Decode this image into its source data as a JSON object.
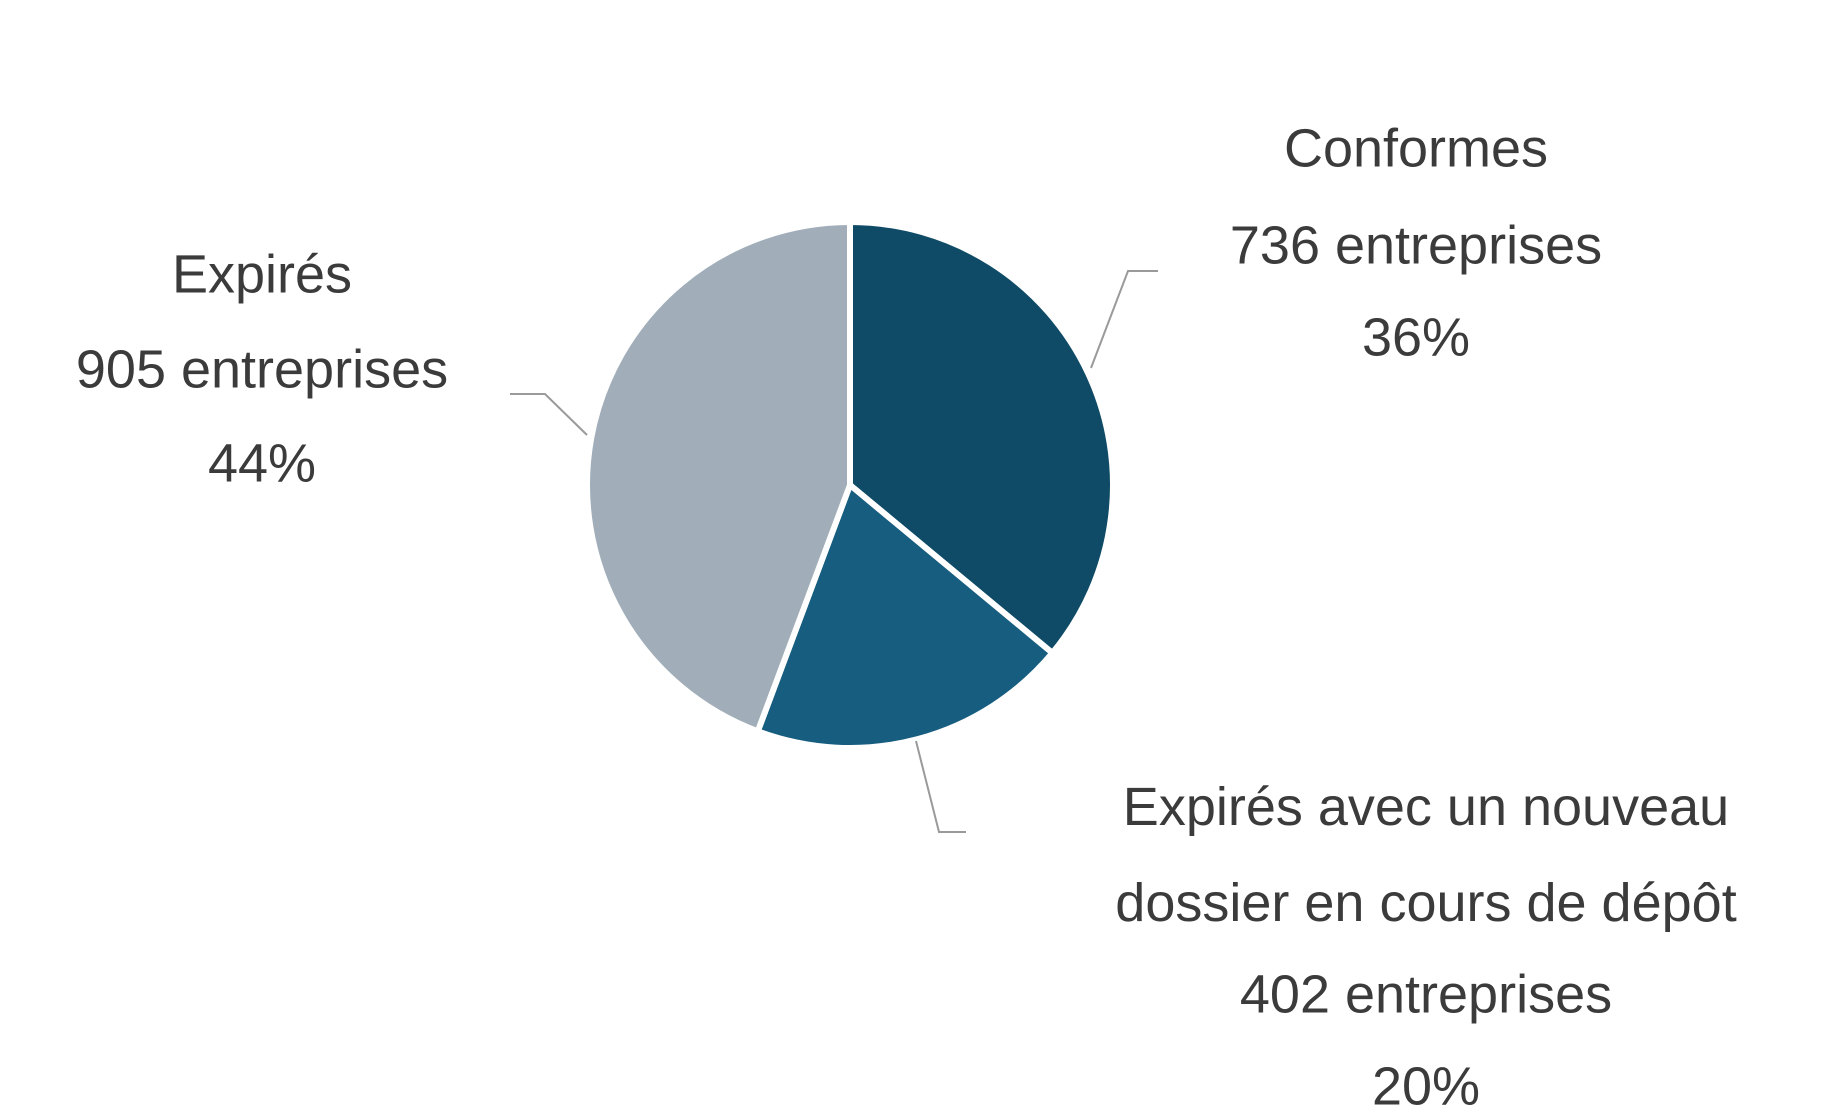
{
  "chart_data": {
    "type": "pie",
    "categories": [
      "Conformes",
      "Expirés avec un nouveau\ndossier en cours de dépôt",
      "Expirés"
    ],
    "values": [
      736,
      402,
      905
    ],
    "value_labels": [
      "736 entreprises",
      "402 entreprises",
      "905 entreprises"
    ],
    "percentages": [
      36,
      20,
      44
    ],
    "percentage_labels": [
      "36%",
      "20%",
      "44%"
    ],
    "colors": [
      "#0f4b67",
      "#165d7f",
      "#a1aeb9"
    ]
  }
}
